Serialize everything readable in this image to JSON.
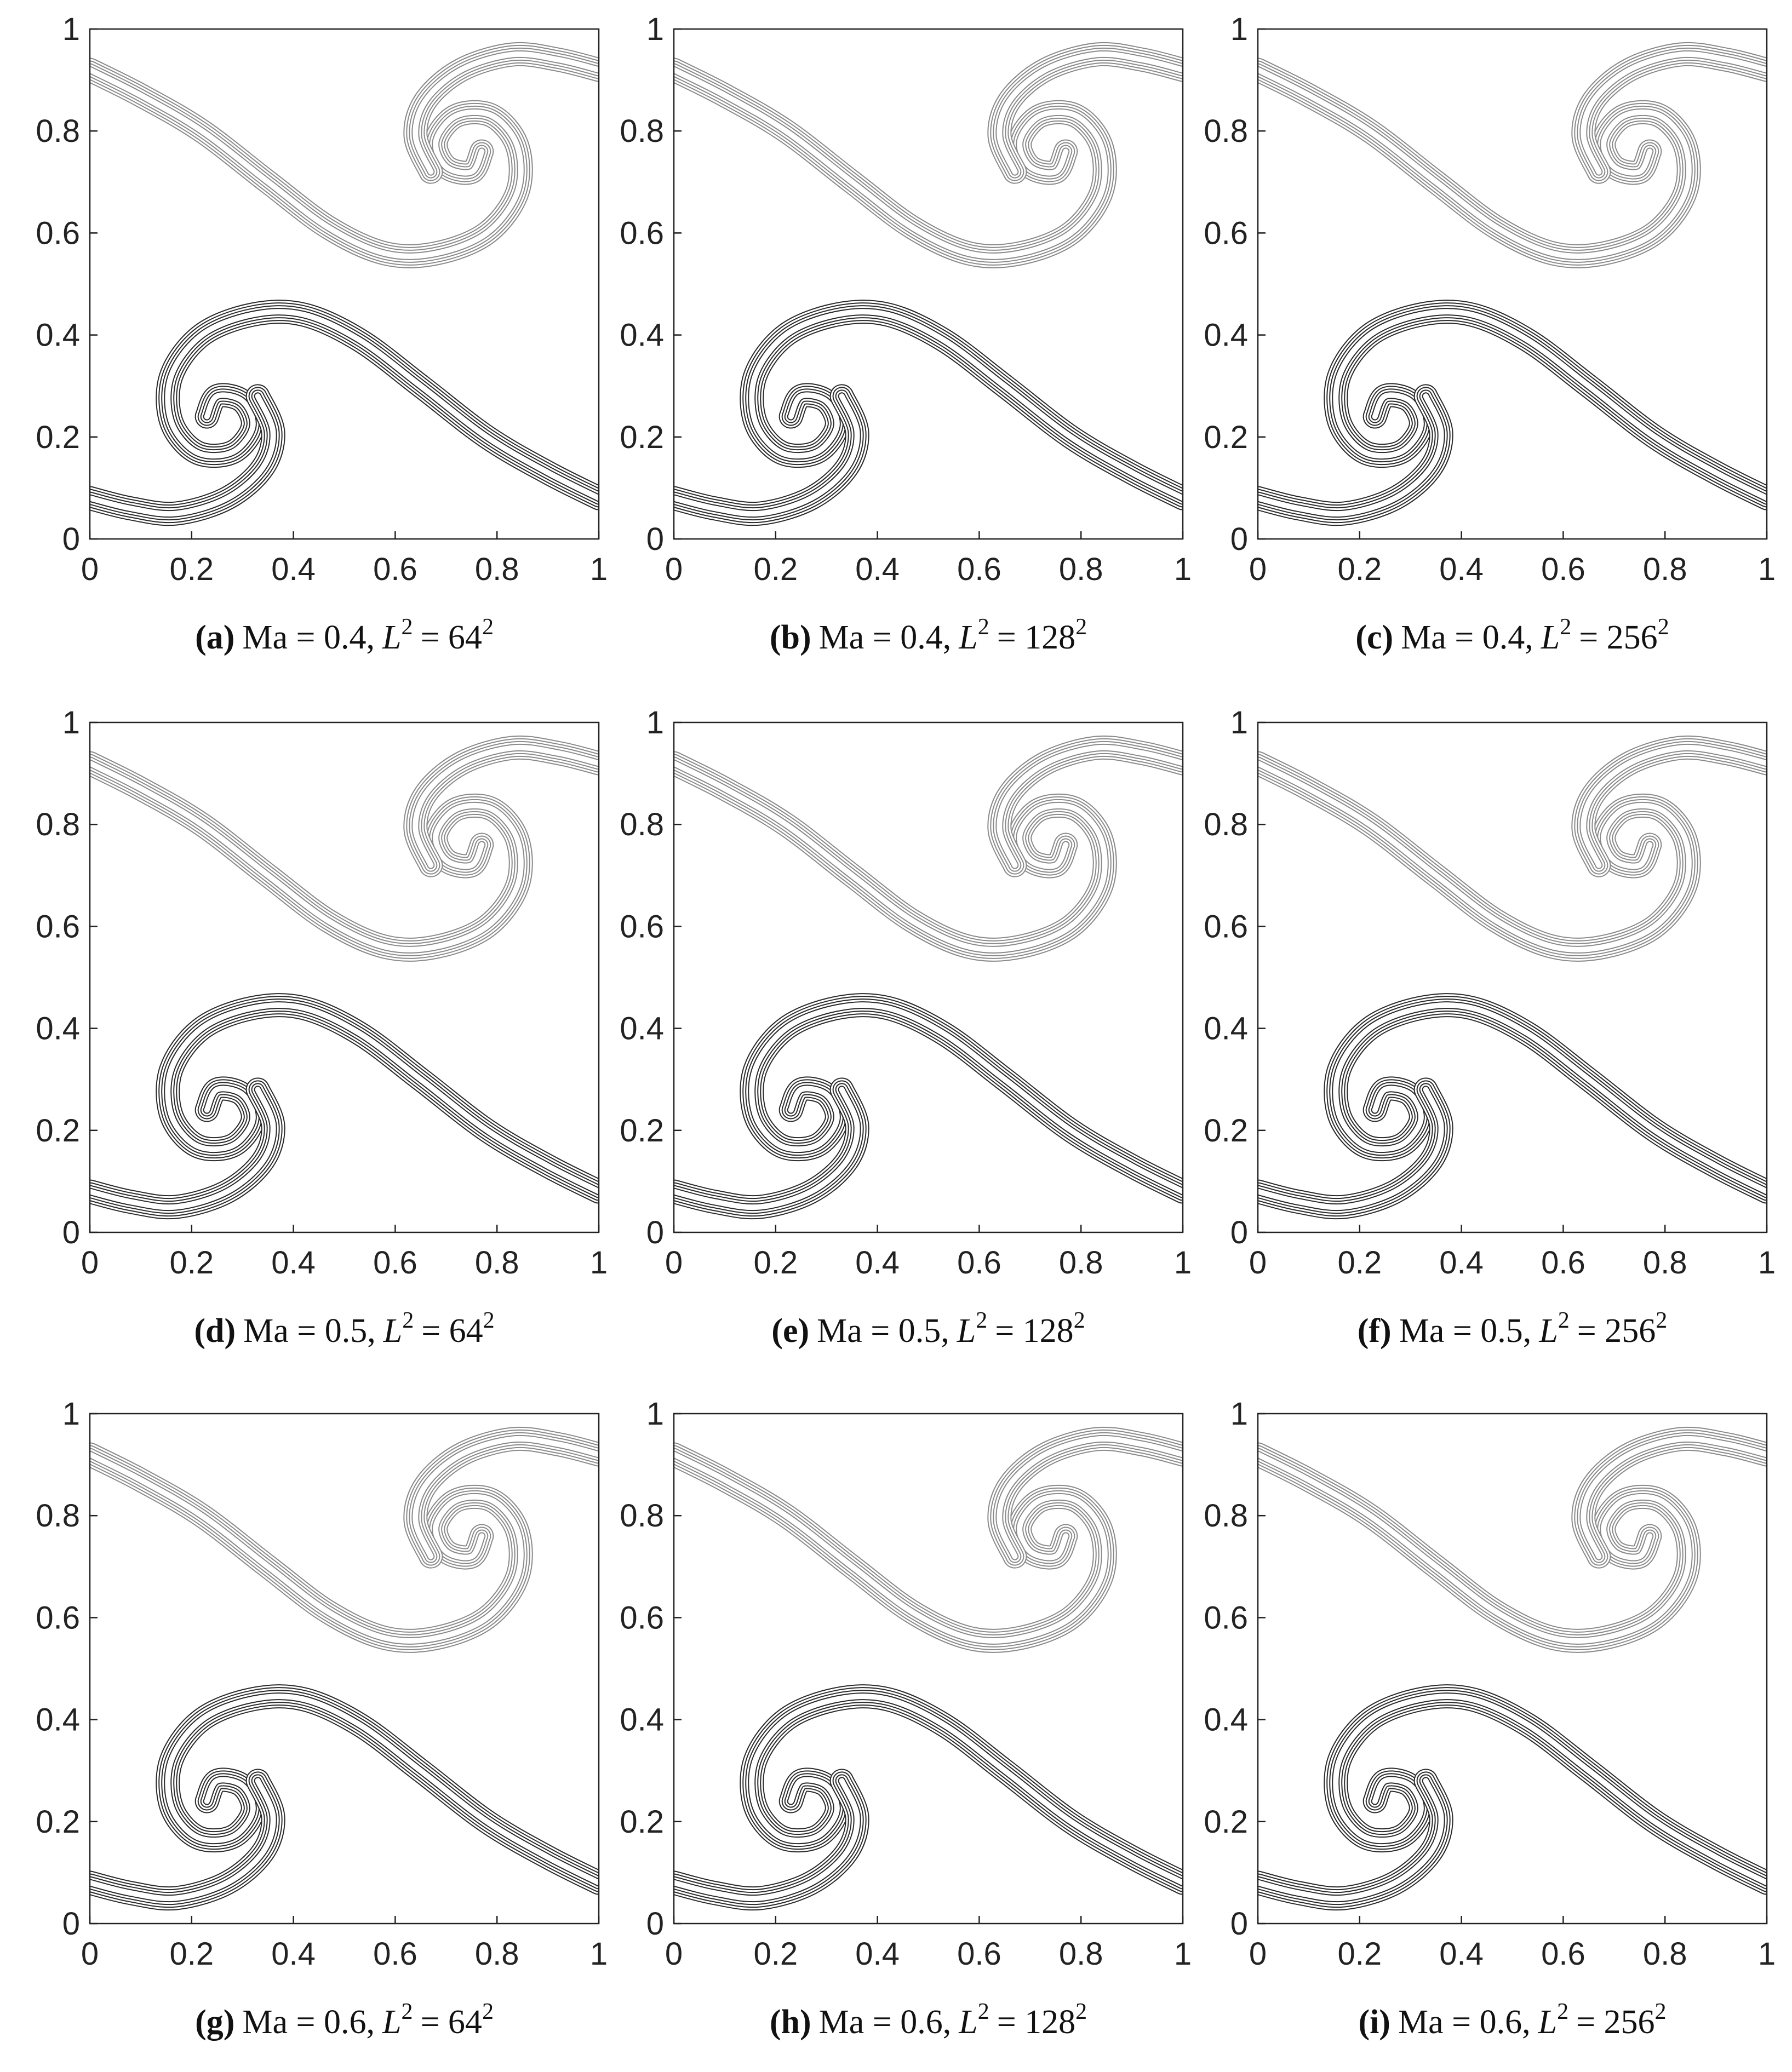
{
  "chart_data": [
    {
      "type": "contour",
      "caption": {
        "label": "(a)",
        "mach": "Ma = 0.4,",
        "lhs": "L",
        "lhs_sup": "2",
        "rhs": "= 64",
        "rhs_sup": "2"
      },
      "xlim": [
        0,
        1
      ],
      "ylim": [
        0,
        1
      ],
      "xticks": [
        0,
        0.2,
        0.4,
        0.6,
        0.8,
        1
      ],
      "yticks": [
        0,
        0.2,
        0.4,
        0.6,
        0.8,
        1
      ]
    },
    {
      "type": "contour",
      "caption": {
        "label": "(b)",
        "mach": "Ma = 0.4,",
        "lhs": "L",
        "lhs_sup": "2",
        "rhs": "= 128",
        "rhs_sup": "2"
      },
      "xlim": [
        0,
        1
      ],
      "ylim": [
        0,
        1
      ],
      "xticks": [
        0,
        0.2,
        0.4,
        0.6,
        0.8,
        1
      ],
      "yticks": [
        0,
        0.2,
        0.4,
        0.6,
        0.8,
        1
      ]
    },
    {
      "type": "contour",
      "caption": {
        "label": "(c)",
        "mach": "Ma = 0.4,",
        "lhs": "L",
        "lhs_sup": "2",
        "rhs": "= 256",
        "rhs_sup": "2"
      },
      "xlim": [
        0,
        1
      ],
      "ylim": [
        0,
        1
      ],
      "xticks": [
        0,
        0.2,
        0.4,
        0.6,
        0.8,
        1
      ],
      "yticks": [
        0,
        0.2,
        0.4,
        0.6,
        0.8,
        1
      ]
    },
    {
      "type": "contour",
      "caption": {
        "label": "(d)",
        "mach": "Ma = 0.5,",
        "lhs": "L",
        "lhs_sup": "2",
        "rhs": "= 64",
        "rhs_sup": "2"
      },
      "xlim": [
        0,
        1
      ],
      "ylim": [
        0,
        1
      ],
      "xticks": [
        0,
        0.2,
        0.4,
        0.6,
        0.8,
        1
      ],
      "yticks": [
        0,
        0.2,
        0.4,
        0.6,
        0.8,
        1
      ]
    },
    {
      "type": "contour",
      "caption": {
        "label": "(e)",
        "mach": "Ma = 0.5,",
        "lhs": "L",
        "lhs_sup": "2",
        "rhs": "= 128",
        "rhs_sup": "2"
      },
      "xlim": [
        0,
        1
      ],
      "ylim": [
        0,
        1
      ],
      "xticks": [
        0,
        0.2,
        0.4,
        0.6,
        0.8,
        1
      ],
      "yticks": [
        0,
        0.2,
        0.4,
        0.6,
        0.8,
        1
      ]
    },
    {
      "type": "contour",
      "caption": {
        "label": "(f)",
        "mach": "Ma = 0.5,",
        "lhs": "L",
        "lhs_sup": "2",
        "rhs": "= 256",
        "rhs_sup": "2"
      },
      "xlim": [
        0,
        1
      ],
      "ylim": [
        0,
        1
      ],
      "xticks": [
        0,
        0.2,
        0.4,
        0.6,
        0.8,
        1
      ],
      "yticks": [
        0,
        0.2,
        0.4,
        0.6,
        0.8,
        1
      ]
    },
    {
      "type": "contour",
      "caption": {
        "label": "(g)",
        "mach": "Ma = 0.6,",
        "lhs": "L",
        "lhs_sup": "2",
        "rhs": "= 64",
        "rhs_sup": "2"
      },
      "xlim": [
        0,
        1
      ],
      "ylim": [
        0,
        1
      ],
      "xticks": [
        0,
        0.2,
        0.4,
        0.6,
        0.8,
        1
      ],
      "yticks": [
        0,
        0.2,
        0.4,
        0.6,
        0.8,
        1
      ]
    },
    {
      "type": "contour",
      "caption": {
        "label": "(h)",
        "mach": "Ma = 0.6,",
        "lhs": "L",
        "lhs_sup": "2",
        "rhs": "= 128",
        "rhs_sup": "2"
      },
      "xlim": [
        0,
        1
      ],
      "ylim": [
        0,
        1
      ],
      "xticks": [
        0,
        0.2,
        0.4,
        0.6,
        0.8,
        1
      ],
      "yticks": [
        0,
        0.2,
        0.4,
        0.6,
        0.8,
        1
      ]
    },
    {
      "type": "contour",
      "caption": {
        "label": "(i)",
        "mach": "Ma = 0.6,",
        "lhs": "L",
        "lhs_sup": "2",
        "rhs": "= 256",
        "rhs_sup": "2"
      },
      "xlim": [
        0,
        1
      ],
      "ylim": [
        0,
        1
      ],
      "xticks": [
        0,
        0.2,
        0.4,
        0.6,
        0.8,
        1
      ],
      "yticks": [
        0,
        0.2,
        0.4,
        0.6,
        0.8,
        1
      ]
    }
  ]
}
